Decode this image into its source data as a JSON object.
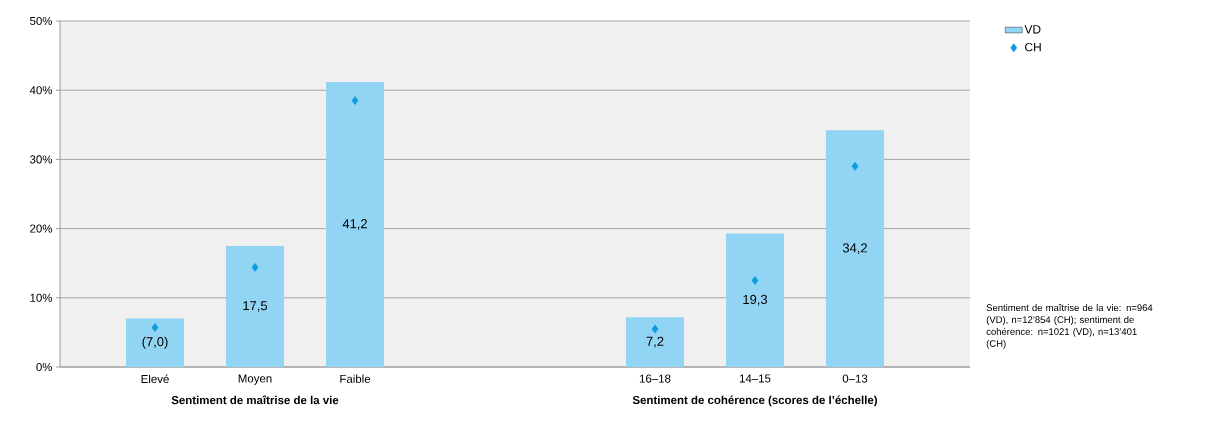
{
  "chart_data": {
    "type": "bar",
    "categories": [
      "Elevé",
      "Moyen",
      "Faible",
      null,
      null,
      "16–18",
      "14–15",
      "0–13"
    ],
    "series": [
      {
        "name": "VD",
        "color": "#92d4f4",
        "values": [
          7.0,
          17.5,
          41.2,
          null,
          null,
          7.2,
          19.3,
          34.2
        ],
        "value_labels": [
          "(7,0)",
          "17,5",
          "41,2",
          null,
          null,
          "7,2",
          "19,3",
          "34,2"
        ]
      },
      {
        "name": "CH",
        "type": "scatter",
        "marker": "diamond",
        "color": "#0a9be0",
        "values": [
          5.7,
          14.4,
          38.5,
          null,
          null,
          5.5,
          12.5,
          29.0
        ]
      }
    ],
    "ylim": [
      0,
      50
    ],
    "yticks": [
      {
        "value": 0,
        "label": "0%"
      },
      {
        "value": 10,
        "label": "10%"
      },
      {
        "value": 20,
        "label": "20%"
      },
      {
        "value": 30,
        "label": "30%"
      },
      {
        "value": 40,
        "label": "40%"
      },
      {
        "value": 50,
        "label": "50%"
      }
    ],
    "grid": "y",
    "legend": "top right",
    "annotations": [
      "Sentiment de maîtrise de la vie",
      "Sentiment de cohérence (scores de l’échelle)",
      "Sentiment de maîtrise de la vie: n=964 (VD), n=12’854 (CH); sentiment de cohérence: n=1021 (VD), n=13’401 (CH)"
    ]
  }
}
